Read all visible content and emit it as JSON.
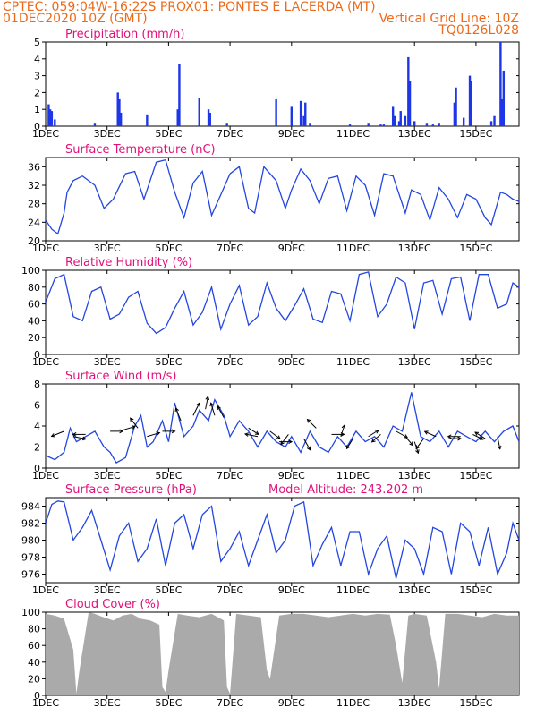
{
  "header": {
    "line1_left": "CPTEC:   059:04W-16:22S   PROX01: PONTES E LACERDA (MT)",
    "line2_left": "01DEC2020 10Z (GMT)",
    "line2_right": "Vertical Grid Line: 10Z",
    "line3_right": "TQ0126L028"
  },
  "colors": {
    "line": "#2346e0",
    "bar": "#1d36e8",
    "cloud": "#aaaaaa",
    "title": "#e0127a",
    "header": "#ee6a1a"
  },
  "x_axis": {
    "range_days": [
      1,
      16.4
    ],
    "ticks": [
      1,
      3,
      5,
      7,
      9,
      11,
      13,
      15
    ],
    "labels": [
      "1DEC",
      "3DEC",
      "5DEC",
      "7DEC",
      "9DEC",
      "11DEC",
      "13DEC",
      "15DEC"
    ]
  },
  "chart_data": [
    {
      "id": "precip",
      "type": "bar",
      "title": "Precipitation (mm/h)",
      "ylim": [
        0,
        5
      ],
      "yticks": [
        0,
        1,
        2,
        3,
        4,
        5
      ],
      "x": [
        1.1,
        1.15,
        1.2,
        1.3,
        2.6,
        3.35,
        3.4,
        3.45,
        4.3,
        5.3,
        5.35,
        6.0,
        6.3,
        6.35,
        6.9,
        8.5,
        9.0,
        9.3,
        9.4,
        9.45,
        9.6,
        10.9,
        11.5,
        11.9,
        12.0,
        12.3,
        12.35,
        12.5,
        12.55,
        12.7,
        12.8,
        12.85,
        13.0,
        13.4,
        13.6,
        13.8,
        14.3,
        14.35,
        14.6,
        14.8,
        14.85,
        15.5,
        15.6,
        15.8,
        15.85,
        15.9
      ],
      "values": [
        1.3,
        1.0,
        0.9,
        0.4,
        0.2,
        2.0,
        1.6,
        0.8,
        0.7,
        1.0,
        3.7,
        1.7,
        1.0,
        0.8,
        0.2,
        1.6,
        1.2,
        1.5,
        0.6,
        1.4,
        0.2,
        0.1,
        0.2,
        0.1,
        0.1,
        1.2,
        0.6,
        0.3,
        0.9,
        0.6,
        4.1,
        2.7,
        0.3,
        0.2,
        0.1,
        0.2,
        1.4,
        2.3,
        0.5,
        3.0,
        2.7,
        0.3,
        0.6,
        5.0,
        1.6,
        3.3
      ]
    },
    {
      "id": "temp",
      "type": "line",
      "title": "Surface Temperature (nC)",
      "ylim": [
        20,
        38
      ],
      "yticks": [
        20,
        24,
        28,
        32,
        36
      ],
      "x": [
        1.0,
        1.2,
        1.4,
        1.6,
        1.7,
        1.9,
        2.2,
        2.6,
        2.9,
        3.2,
        3.6,
        3.9,
        4.2,
        4.6,
        4.9,
        5.2,
        5.5,
        5.8,
        6.1,
        6.4,
        6.6,
        7.0,
        7.3,
        7.6,
        7.8,
        8.1,
        8.5,
        8.8,
        9.0,
        9.3,
        9.6,
        9.9,
        10.2,
        10.5,
        10.8,
        11.1,
        11.4,
        11.7,
        12.0,
        12.3,
        12.7,
        12.9,
        13.2,
        13.5,
        13.8,
        14.1,
        14.4,
        14.7,
        15.0,
        15.3,
        15.5,
        15.8,
        16.0,
        16.2,
        16.4
      ],
      "values": [
        24.5,
        22.5,
        21.5,
        26.0,
        30.5,
        33.0,
        34.0,
        32.0,
        27.0,
        29.0,
        34.5,
        35.0,
        29.0,
        37.0,
        37.5,
        30.5,
        25.0,
        32.5,
        35.0,
        25.5,
        28.5,
        34.5,
        36.0,
        27.0,
        26.0,
        36.0,
        33.0,
        27.0,
        31.0,
        35.5,
        33.0,
        28.0,
        33.5,
        34.0,
        26.5,
        34.0,
        32.0,
        25.5,
        34.5,
        34.0,
        26.0,
        31.0,
        30.0,
        24.5,
        31.5,
        29.0,
        25.0,
        30.0,
        29.0,
        25.0,
        23.5,
        30.5,
        30.0,
        29.0,
        28.5
      ]
    },
    {
      "id": "rh",
      "type": "line",
      "title": "Relative Humidity (%)",
      "ylim": [
        0,
        100
      ],
      "yticks": [
        0,
        20,
        40,
        60,
        80,
        100
      ],
      "x": [
        1.0,
        1.3,
        1.6,
        1.9,
        2.2,
        2.5,
        2.8,
        3.1,
        3.4,
        3.7,
        4.0,
        4.3,
        4.6,
        4.9,
        5.2,
        5.5,
        5.8,
        6.1,
        6.4,
        6.7,
        7.0,
        7.3,
        7.6,
        7.9,
        8.2,
        8.5,
        8.8,
        9.1,
        9.4,
        9.7,
        10.0,
        10.3,
        10.6,
        10.9,
        11.2,
        11.5,
        11.8,
        12.1,
        12.4,
        12.7,
        13.0,
        13.3,
        13.6,
        13.9,
        14.2,
        14.5,
        14.8,
        15.1,
        15.4,
        15.7,
        16.0,
        16.2,
        16.4
      ],
      "values": [
        62,
        90,
        95,
        45,
        40,
        75,
        80,
        42,
        48,
        68,
        75,
        37,
        25,
        32,
        55,
        75,
        35,
        50,
        80,
        30,
        60,
        82,
        35,
        45,
        85,
        55,
        40,
        58,
        78,
        42,
        38,
        75,
        72,
        40,
        95,
        98,
        45,
        60,
        92,
        85,
        30,
        85,
        88,
        48,
        90,
        92,
        40,
        95,
        95,
        55,
        60,
        85,
        80
      ]
    },
    {
      "id": "wind",
      "type": "line",
      "title": "Surface Wind (m/s)",
      "ylim": [
        0,
        8
      ],
      "yticks": [
        0,
        2,
        4,
        6,
        8
      ],
      "x": [
        1.0,
        1.3,
        1.6,
        1.8,
        2.0,
        2.3,
        2.6,
        2.9,
        3.1,
        3.3,
        3.6,
        3.9,
        4.1,
        4.3,
        4.5,
        4.8,
        5.0,
        5.2,
        5.5,
        5.8,
        6.0,
        6.3,
        6.5,
        6.8,
        7.0,
        7.3,
        7.6,
        7.9,
        8.2,
        8.5,
        8.8,
        9.0,
        9.3,
        9.6,
        9.9,
        10.2,
        10.5,
        10.8,
        11.1,
        11.4,
        11.7,
        12.0,
        12.3,
        12.6,
        12.9,
        13.2,
        13.5,
        13.8,
        14.1,
        14.4,
        14.7,
        15.0,
        15.3,
        15.6,
        15.9,
        16.2,
        16.4
      ],
      "values": [
        1.2,
        0.8,
        1.5,
        3.8,
        2.5,
        3.0,
        3.5,
        2.0,
        1.5,
        0.5,
        1.0,
        4.0,
        5.0,
        2.0,
        2.5,
        4.5,
        2.5,
        6.2,
        3.0,
        4.0,
        5.5,
        4.5,
        6.5,
        5.0,
        3.0,
        4.5,
        3.5,
        2.0,
        3.5,
        2.5,
        2.0,
        3.0,
        1.5,
        3.5,
        2.0,
        1.5,
        3.0,
        2.0,
        3.5,
        2.5,
        3.0,
        2.0,
        4.0,
        3.5,
        7.2,
        3.0,
        2.5,
        3.5,
        2.0,
        3.5,
        3.0,
        2.5,
        3.5,
        2.5,
        3.5,
        4.0,
        2.5
      ],
      "arrows": [
        {
          "x": 1.6,
          "y": 3.5,
          "u": -1,
          "v": -0.4
        },
        {
          "x": 1.9,
          "y": 3.0,
          "u": 1,
          "v": -0.2
        },
        {
          "x": 2.3,
          "y": 3.2,
          "u": -1,
          "v": 0
        },
        {
          "x": 3.1,
          "y": 3.5,
          "u": 1,
          "v": 0
        },
        {
          "x": 3.5,
          "y": 3.6,
          "u": 1,
          "v": 0.3
        },
        {
          "x": 4.0,
          "y": 3.8,
          "u": -0.6,
          "v": 0.8
        },
        {
          "x": 4.3,
          "y": 3.0,
          "u": 1,
          "v": 0.3
        },
        {
          "x": 4.8,
          "y": 3.5,
          "u": 1,
          "v": 0
        },
        {
          "x": 5.4,
          "y": 4.5,
          "u": -0.4,
          "v": 1
        },
        {
          "x": 5.8,
          "y": 5.0,
          "u": 0.5,
          "v": 1
        },
        {
          "x": 6.2,
          "y": 5.6,
          "u": 0.2,
          "v": 1
        },
        {
          "x": 6.5,
          "y": 5.0,
          "u": -0.3,
          "v": 1
        },
        {
          "x": 6.8,
          "y": 4.8,
          "u": -0.5,
          "v": 0.9
        },
        {
          "x": 7.6,
          "y": 3.8,
          "u": 0.8,
          "v": -0.5
        },
        {
          "x": 7.9,
          "y": 3.0,
          "u": -1,
          "v": 0.2
        },
        {
          "x": 8.3,
          "y": 3.5,
          "u": 0.8,
          "v": -0.6
        },
        {
          "x": 8.6,
          "y": 2.5,
          "u": 1,
          "v": 0
        },
        {
          "x": 8.9,
          "y": 3.2,
          "u": -0.6,
          "v": -0.8
        },
        {
          "x": 9.4,
          "y": 2.8,
          "u": 0.5,
          "v": -0.9
        },
        {
          "x": 9.8,
          "y": 3.8,
          "u": -0.7,
          "v": 0.7
        },
        {
          "x": 10.3,
          "y": 3.2,
          "u": 1,
          "v": 0
        },
        {
          "x": 10.6,
          "y": 3.0,
          "u": 0.3,
          "v": 0.9
        },
        {
          "x": 11.0,
          "y": 2.8,
          "u": -0.5,
          "v": -0.8
        },
        {
          "x": 11.5,
          "y": 3.0,
          "u": 0.8,
          "v": 0.5
        },
        {
          "x": 11.9,
          "y": 3.2,
          "u": -0.7,
          "v": -0.6
        },
        {
          "x": 12.4,
          "y": 3.5,
          "u": 0.9,
          "v": -0.5
        },
        {
          "x": 12.7,
          "y": 3.0,
          "u": 0.6,
          "v": -0.7
        },
        {
          "x": 13.0,
          "y": 2.5,
          "u": 0.3,
          "v": -0.9
        },
        {
          "x": 13.3,
          "y": 2.8,
          "u": -0.6,
          "v": -0.8
        },
        {
          "x": 13.7,
          "y": 3.0,
          "u": -0.9,
          "v": 0.4
        },
        {
          "x": 14.1,
          "y": 2.8,
          "u": 1,
          "v": 0
        },
        {
          "x": 14.5,
          "y": 3.0,
          "u": -1,
          "v": 0
        },
        {
          "x": 14.9,
          "y": 3.2,
          "u": 0.8,
          "v": -0.4
        },
        {
          "x": 15.3,
          "y": 2.8,
          "u": -0.8,
          "v": 0.5
        },
        {
          "x": 15.7,
          "y": 3.0,
          "u": 0.2,
          "v": -1
        }
      ]
    },
    {
      "id": "pressure",
      "type": "line",
      "title": "Surface Pressure (hPa)",
      "annotation": "Model Altitude: 243.202 m",
      "ylim": [
        975,
        985
      ],
      "yticks": [
        976,
        978,
        980,
        982,
        984
      ],
      "x": [
        1.0,
        1.2,
        1.4,
        1.6,
        1.9,
        2.2,
        2.5,
        2.8,
        3.1,
        3.4,
        3.7,
        4.0,
        4.3,
        4.6,
        4.9,
        5.2,
        5.5,
        5.8,
        6.1,
        6.4,
        6.7,
        7.0,
        7.3,
        7.6,
        7.9,
        8.2,
        8.5,
        8.8,
        9.1,
        9.4,
        9.7,
        10.0,
        10.3,
        10.6,
        10.9,
        11.2,
        11.5,
        11.8,
        12.1,
        12.4,
        12.7,
        13.0,
        13.3,
        13.6,
        13.9,
        14.2,
        14.5,
        14.8,
        15.1,
        15.4,
        15.7,
        16.0,
        16.2,
        16.4
      ],
      "values": [
        982,
        984.2,
        984.6,
        984.5,
        980,
        981.5,
        983.5,
        980,
        976.5,
        980.5,
        982,
        977.5,
        979,
        982.5,
        977,
        982,
        983,
        979,
        983,
        984,
        977.5,
        979,
        981,
        977,
        980,
        983,
        978.5,
        980,
        984,
        984.5,
        977,
        979.5,
        981.5,
        977,
        981,
        981,
        976,
        979,
        980.5,
        975.5,
        980,
        979,
        976,
        981.5,
        981,
        976,
        982,
        981,
        977,
        981.5,
        976,
        978.5,
        982,
        980
      ]
    },
    {
      "id": "cloud",
      "type": "area",
      "title": "Cloud Cover (%)",
      "ylim": [
        0,
        100
      ],
      "yticks": [
        0,
        20,
        40,
        60,
        80,
        100
      ],
      "x": [
        1.0,
        1.3,
        1.6,
        1.9,
        2.0,
        2.1,
        2.4,
        2.6,
        2.8,
        3.2,
        3.5,
        3.8,
        4.1,
        4.4,
        4.7,
        4.8,
        4.9,
        5.0,
        5.3,
        5.6,
        6.0,
        6.4,
        6.8,
        6.9,
        7.0,
        7.2,
        7.6,
        8.0,
        8.2,
        8.3,
        8.6,
        9.0,
        9.4,
        9.8,
        10.2,
        10.6,
        11.0,
        11.4,
        11.8,
        12.2,
        12.4,
        12.6,
        12.8,
        13.0,
        13.4,
        13.7,
        13.8,
        14.0,
        14.4,
        14.8,
        15.2,
        15.6,
        16.0,
        16.4
      ],
      "values": [
        98,
        96,
        92,
        55,
        2,
        30,
        100,
        98,
        95,
        90,
        96,
        98,
        92,
        90,
        85,
        10,
        4,
        30,
        98,
        96,
        94,
        98,
        90,
        10,
        2,
        98,
        96,
        94,
        30,
        20,
        96,
        98,
        98,
        96,
        94,
        96,
        98,
        96,
        98,
        97,
        60,
        15,
        96,
        98,
        96,
        40,
        8,
        98,
        98,
        96,
        94,
        98,
        96,
        96
      ]
    }
  ]
}
